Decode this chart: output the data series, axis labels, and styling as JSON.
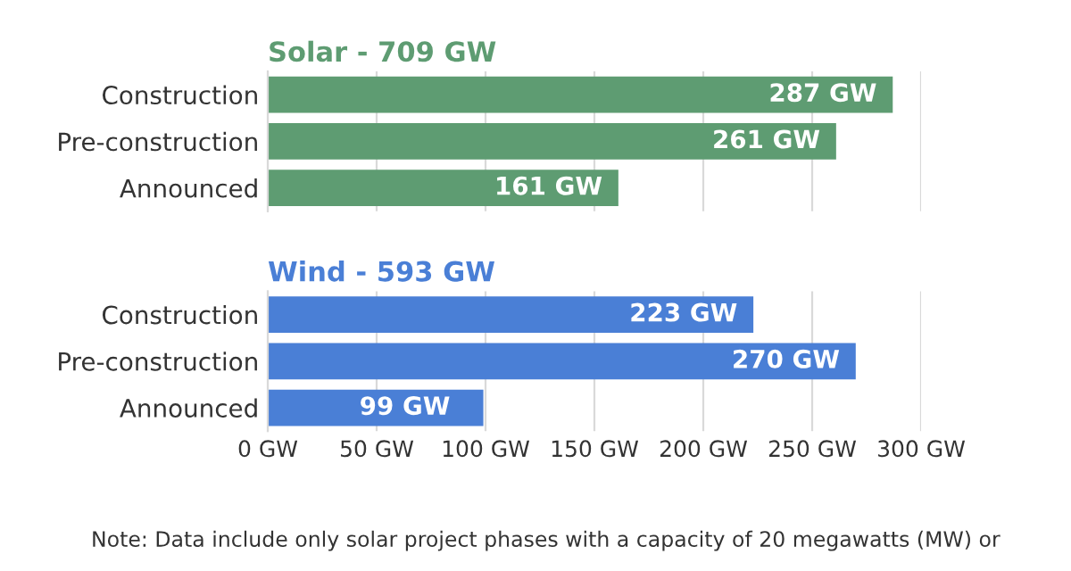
{
  "chart_data": [
    {
      "type": "bar",
      "orientation": "horizontal",
      "title": "Solar - 709 GW",
      "categories": [
        "Construction",
        "Pre-construction",
        "Announced"
      ],
      "series": [
        {
          "color": "#5e9c72",
          "values": [
            287,
            261,
            161
          ],
          "value_labels": [
            "287 GW",
            "261 GW",
            "161 GW"
          ]
        }
      ],
      "xlim": [
        0,
        300
      ],
      "xticks": [
        0,
        50,
        100,
        150,
        200,
        250,
        300
      ],
      "grid": "x",
      "tick_labels": "y"
    },
    {
      "type": "bar",
      "orientation": "horizontal",
      "title": "Wind - 593 GW",
      "categories": [
        "Construction",
        "Pre-construction",
        "Announced"
      ],
      "series": [
        {
          "color": "#4a7fd6",
          "values": [
            223,
            270,
            99
          ],
          "value_labels": [
            "223 GW",
            "270 GW",
            "99 GW"
          ]
        }
      ],
      "xlim": [
        0,
        300
      ],
      "xticks": [
        {
          "value": 0,
          "label": "0 GW"
        },
        {
          "value": 50,
          "label": "50 GW"
        },
        {
          "value": 100,
          "label": "100 GW"
        },
        {
          "value": 150,
          "label": "150 GW"
        },
        {
          "value": 200,
          "label": "200 GW"
        },
        {
          "value": 250,
          "label": "250 GW"
        },
        {
          "value": 300,
          "label": "300 GW"
        }
      ],
      "grid": "x",
      "annotations": [
        "Note: Data include only solar project phases with a capacity of 20 megawatts (MW) or"
      ]
    }
  ]
}
